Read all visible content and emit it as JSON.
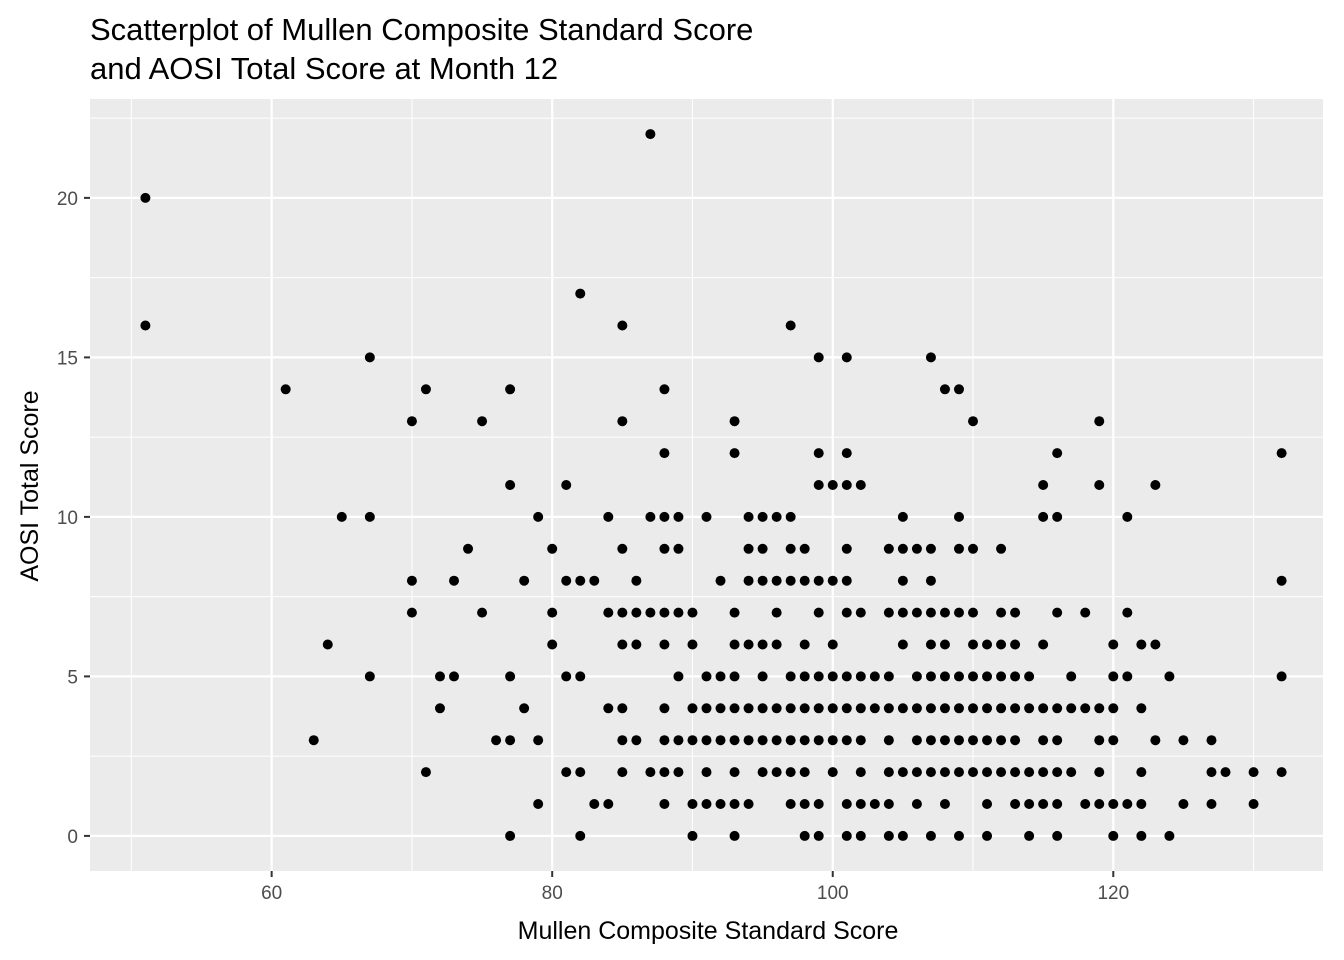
{
  "chart_data": {
    "type": "scatter",
    "title": [
      "Scatterplot of Mullen Composite Standard Score",
      "and AOSI Total Score at Month 12"
    ],
    "xlabel": "Mullen Composite Standard Score",
    "ylabel": "AOSI Total Score",
    "xlim": [
      47.05,
      134.95
    ],
    "ylim": [
      -1.1,
      23.1
    ],
    "x_ticks": [
      60,
      80,
      100,
      120
    ],
    "y_ticks": [
      0,
      5,
      10,
      15,
      20
    ],
    "grid": true,
    "legend": "none",
    "colors": {
      "panel": "#ebebeb",
      "grid": "#ffffff",
      "point": "#000000"
    },
    "points": [
      [
        51,
        20
      ],
      [
        51,
        16
      ],
      [
        61,
        14
      ],
      [
        63,
        3
      ],
      [
        64,
        6
      ],
      [
        65,
        10
      ],
      [
        67,
        15
      ],
      [
        67,
        10
      ],
      [
        67,
        5
      ],
      [
        70,
        13
      ],
      [
        70,
        8
      ],
      [
        70,
        7
      ],
      [
        71,
        14
      ],
      [
        71,
        2
      ],
      [
        72,
        5
      ],
      [
        72,
        4
      ],
      [
        73,
        8
      ],
      [
        73,
        5
      ],
      [
        74,
        9
      ],
      [
        75,
        13
      ],
      [
        75,
        7
      ],
      [
        76,
        3
      ],
      [
        77,
        14
      ],
      [
        77,
        11
      ],
      [
        77,
        5
      ],
      [
        77,
        3
      ],
      [
        77,
        0
      ],
      [
        78,
        8
      ],
      [
        78,
        4
      ],
      [
        79,
        10
      ],
      [
        79,
        3
      ],
      [
        79,
        1
      ],
      [
        80,
        9
      ],
      [
        80,
        7
      ],
      [
        80,
        6
      ],
      [
        81,
        11
      ],
      [
        81,
        8
      ],
      [
        81,
        5
      ],
      [
        81,
        2
      ],
      [
        82,
        17
      ],
      [
        82,
        8
      ],
      [
        82,
        5
      ],
      [
        82,
        2
      ],
      [
        82,
        0
      ],
      [
        83,
        8
      ],
      [
        83,
        1
      ],
      [
        84,
        10
      ],
      [
        84,
        7
      ],
      [
        84,
        4
      ],
      [
        84,
        1
      ],
      [
        85,
        16
      ],
      [
        85,
        13
      ],
      [
        85,
        9
      ],
      [
        85,
        7
      ],
      [
        85,
        6
      ],
      [
        85,
        4
      ],
      [
        85,
        3
      ],
      [
        85,
        2
      ],
      [
        86,
        8
      ],
      [
        86,
        7
      ],
      [
        86,
        6
      ],
      [
        86,
        3
      ],
      [
        87,
        22
      ],
      [
        87,
        10
      ],
      [
        87,
        7
      ],
      [
        87,
        2
      ],
      [
        88,
        14
      ],
      [
        88,
        12
      ],
      [
        88,
        10
      ],
      [
        88,
        9
      ],
      [
        88,
        7
      ],
      [
        88,
        6
      ],
      [
        88,
        4
      ],
      [
        88,
        3
      ],
      [
        88,
        2
      ],
      [
        88,
        1
      ],
      [
        89,
        10
      ],
      [
        89,
        9
      ],
      [
        89,
        7
      ],
      [
        89,
        5
      ],
      [
        89,
        3
      ],
      [
        89,
        2
      ],
      [
        90,
        7
      ],
      [
        90,
        6
      ],
      [
        90,
        4
      ],
      [
        90,
        3
      ],
      [
        90,
        1
      ],
      [
        90,
        0
      ],
      [
        91,
        10
      ],
      [
        91,
        5
      ],
      [
        91,
        4
      ],
      [
        91,
        3
      ],
      [
        91,
        2
      ],
      [
        91,
        1
      ],
      [
        92,
        8
      ],
      [
        92,
        5
      ],
      [
        92,
        4
      ],
      [
        92,
        3
      ],
      [
        92,
        1
      ],
      [
        93,
        13
      ],
      [
        93,
        12
      ],
      [
        93,
        7
      ],
      [
        93,
        6
      ],
      [
        93,
        5
      ],
      [
        93,
        4
      ],
      [
        93,
        3
      ],
      [
        93,
        2
      ],
      [
        93,
        1
      ],
      [
        93,
        0
      ],
      [
        94,
        10
      ],
      [
        94,
        9
      ],
      [
        94,
        8
      ],
      [
        94,
        6
      ],
      [
        94,
        4
      ],
      [
        94,
        3
      ],
      [
        94,
        1
      ],
      [
        95,
        10
      ],
      [
        95,
        9
      ],
      [
        95,
        8
      ],
      [
        95,
        6
      ],
      [
        95,
        5
      ],
      [
        95,
        4
      ],
      [
        95,
        3
      ],
      [
        95,
        2
      ],
      [
        96,
        10
      ],
      [
        96,
        8
      ],
      [
        96,
        7
      ],
      [
        96,
        6
      ],
      [
        96,
        4
      ],
      [
        96,
        3
      ],
      [
        96,
        2
      ],
      [
        97,
        16
      ],
      [
        97,
        10
      ],
      [
        97,
        9
      ],
      [
        97,
        8
      ],
      [
        97,
        5
      ],
      [
        97,
        4
      ],
      [
        97,
        3
      ],
      [
        97,
        2
      ],
      [
        97,
        1
      ],
      [
        98,
        9
      ],
      [
        98,
        8
      ],
      [
        98,
        6
      ],
      [
        98,
        5
      ],
      [
        98,
        4
      ],
      [
        98,
        3
      ],
      [
        98,
        2
      ],
      [
        98,
        1
      ],
      [
        98,
        0
      ],
      [
        99,
        15
      ],
      [
        99,
        12
      ],
      [
        99,
        11
      ],
      [
        99,
        8
      ],
      [
        99,
        7
      ],
      [
        99,
        5
      ],
      [
        99,
        4
      ],
      [
        99,
        3
      ],
      [
        99,
        1
      ],
      [
        99,
        0
      ],
      [
        100,
        11
      ],
      [
        100,
        8
      ],
      [
        100,
        6
      ],
      [
        100,
        5
      ],
      [
        100,
        4
      ],
      [
        100,
        3
      ],
      [
        100,
        2
      ],
      [
        101,
        15
      ],
      [
        101,
        12
      ],
      [
        101,
        11
      ],
      [
        101,
        9
      ],
      [
        101,
        8
      ],
      [
        101,
        7
      ],
      [
        101,
        5
      ],
      [
        101,
        4
      ],
      [
        101,
        3
      ],
      [
        101,
        1
      ],
      [
        101,
        0
      ],
      [
        102,
        11
      ],
      [
        102,
        7
      ],
      [
        102,
        5
      ],
      [
        102,
        4
      ],
      [
        102,
        3
      ],
      [
        102,
        2
      ],
      [
        102,
        1
      ],
      [
        102,
        0
      ],
      [
        103,
        5
      ],
      [
        103,
        4
      ],
      [
        103,
        1
      ],
      [
        104,
        9
      ],
      [
        104,
        7
      ],
      [
        104,
        5
      ],
      [
        104,
        4
      ],
      [
        104,
        3
      ],
      [
        104,
        2
      ],
      [
        104,
        1
      ],
      [
        104,
        0
      ],
      [
        105,
        10
      ],
      [
        105,
        9
      ],
      [
        105,
        8
      ],
      [
        105,
        7
      ],
      [
        105,
        6
      ],
      [
        105,
        4
      ],
      [
        105,
        2
      ],
      [
        105,
        0
      ],
      [
        106,
        9
      ],
      [
        106,
        7
      ],
      [
        106,
        5
      ],
      [
        106,
        4
      ],
      [
        106,
        3
      ],
      [
        106,
        2
      ],
      [
        106,
        1
      ],
      [
        107,
        15
      ],
      [
        107,
        9
      ],
      [
        107,
        8
      ],
      [
        107,
        7
      ],
      [
        107,
        6
      ],
      [
        107,
        5
      ],
      [
        107,
        4
      ],
      [
        107,
        3
      ],
      [
        107,
        2
      ],
      [
        107,
        0
      ],
      [
        108,
        14
      ],
      [
        108,
        7
      ],
      [
        108,
        6
      ],
      [
        108,
        5
      ],
      [
        108,
        4
      ],
      [
        108,
        3
      ],
      [
        108,
        2
      ],
      [
        108,
        1
      ],
      [
        109,
        14
      ],
      [
        109,
        10
      ],
      [
        109,
        9
      ],
      [
        109,
        7
      ],
      [
        109,
        5
      ],
      [
        109,
        4
      ],
      [
        109,
        3
      ],
      [
        109,
        2
      ],
      [
        109,
        0
      ],
      [
        110,
        13
      ],
      [
        110,
        9
      ],
      [
        110,
        7
      ],
      [
        110,
        6
      ],
      [
        110,
        5
      ],
      [
        110,
        4
      ],
      [
        110,
        3
      ],
      [
        110,
        2
      ],
      [
        111,
        6
      ],
      [
        111,
        5
      ],
      [
        111,
        4
      ],
      [
        111,
        3
      ],
      [
        111,
        2
      ],
      [
        111,
        1
      ],
      [
        111,
        0
      ],
      [
        112,
        9
      ],
      [
        112,
        7
      ],
      [
        112,
        6
      ],
      [
        112,
        5
      ],
      [
        112,
        4
      ],
      [
        112,
        3
      ],
      [
        112,
        2
      ],
      [
        113,
        7
      ],
      [
        113,
        6
      ],
      [
        113,
        5
      ],
      [
        113,
        4
      ],
      [
        113,
        3
      ],
      [
        113,
        2
      ],
      [
        113,
        1
      ],
      [
        114,
        5
      ],
      [
        114,
        4
      ],
      [
        114,
        2
      ],
      [
        114,
        1
      ],
      [
        114,
        0
      ],
      [
        115,
        11
      ],
      [
        115,
        10
      ],
      [
        115,
        6
      ],
      [
        115,
        4
      ],
      [
        115,
        3
      ],
      [
        115,
        2
      ],
      [
        115,
        1
      ],
      [
        116,
        12
      ],
      [
        116,
        10
      ],
      [
        116,
        7
      ],
      [
        116,
        4
      ],
      [
        116,
        3
      ],
      [
        116,
        2
      ],
      [
        116,
        1
      ],
      [
        116,
        0
      ],
      [
        117,
        5
      ],
      [
        117,
        4
      ],
      [
        117,
        2
      ],
      [
        118,
        7
      ],
      [
        118,
        4
      ],
      [
        118,
        1
      ],
      [
        119,
        13
      ],
      [
        119,
        11
      ],
      [
        119,
        4
      ],
      [
        119,
        3
      ],
      [
        119,
        2
      ],
      [
        119,
        1
      ],
      [
        120,
        6
      ],
      [
        120,
        5
      ],
      [
        120,
        4
      ],
      [
        120,
        3
      ],
      [
        120,
        1
      ],
      [
        120,
        0
      ],
      [
        121,
        10
      ],
      [
        121,
        7
      ],
      [
        121,
        5
      ],
      [
        121,
        1
      ],
      [
        122,
        6
      ],
      [
        122,
        4
      ],
      [
        122,
        2
      ],
      [
        122,
        1
      ],
      [
        122,
        0
      ],
      [
        123,
        11
      ],
      [
        123,
        6
      ],
      [
        123,
        3
      ],
      [
        124,
        5
      ],
      [
        124,
        0
      ],
      [
        125,
        3
      ],
      [
        125,
        1
      ],
      [
        127,
        3
      ],
      [
        127,
        2
      ],
      [
        127,
        1
      ],
      [
        128,
        2
      ],
      [
        130,
        2
      ],
      [
        130,
        1
      ],
      [
        132,
        12
      ],
      [
        132,
        8
      ],
      [
        132,
        5
      ],
      [
        132,
        2
      ]
    ]
  }
}
